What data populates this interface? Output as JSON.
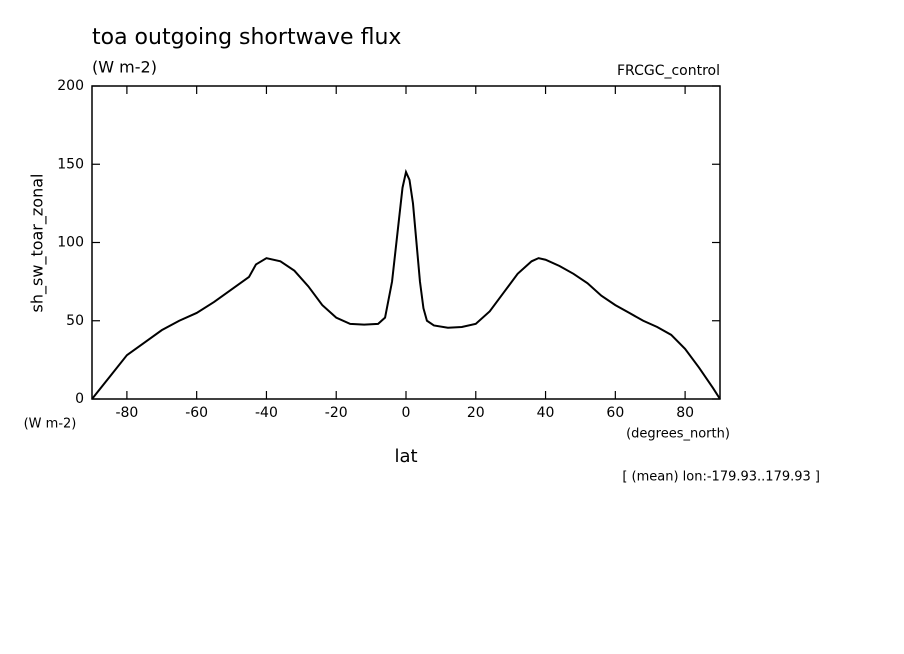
{
  "chart_data": {
    "type": "line",
    "title": "toa outgoing shortwave flux",
    "subtitle": "(W m-2)",
    "annotation": "FRCGC_control",
    "y_label": "sh_sw_toar_zonal",
    "y_unit": "(W m-2)",
    "x_label": "lat",
    "x_unit": "(degrees_north)",
    "footnote": "[ (mean) lon:-179.93..179.93 ]",
    "xlim": [
      -90,
      90
    ],
    "xticks": [
      -80,
      -60,
      -40,
      -20,
      0,
      20,
      40,
      60,
      80
    ],
    "ylim": [
      0,
      200
    ],
    "yticks": [
      0,
      50,
      100,
      150,
      200
    ],
    "series": [
      {
        "color": "#000000",
        "x": [
          -90,
          -85,
          -80,
          -75,
          -70,
          -65,
          -60,
          -55,
          -50,
          -45,
          -43,
          -40,
          -36,
          -32,
          -28,
          -24,
          -20,
          -16,
          -12,
          -8,
          -6,
          -4,
          -2,
          -1,
          0,
          1,
          2,
          3,
          4,
          5,
          6,
          8,
          12,
          16,
          20,
          24,
          28,
          32,
          36,
          38,
          40,
          44,
          48,
          52,
          56,
          60,
          64,
          68,
          72,
          76,
          80,
          84,
          88,
          90
        ],
        "values": [
          0,
          14,
          28,
          36,
          44,
          50,
          55,
          62,
          70,
          78,
          86,
          90,
          88,
          82,
          72,
          60,
          52,
          48,
          47.5,
          48,
          52,
          75,
          115,
          135,
          145,
          140,
          125,
          100,
          75,
          58,
          50,
          47,
          45.5,
          46,
          48,
          56,
          68,
          80,
          88,
          90,
          89,
          85,
          80,
          74,
          66,
          60,
          55,
          50,
          46,
          41,
          32,
          20,
          7,
          0
        ]
      }
    ]
  }
}
